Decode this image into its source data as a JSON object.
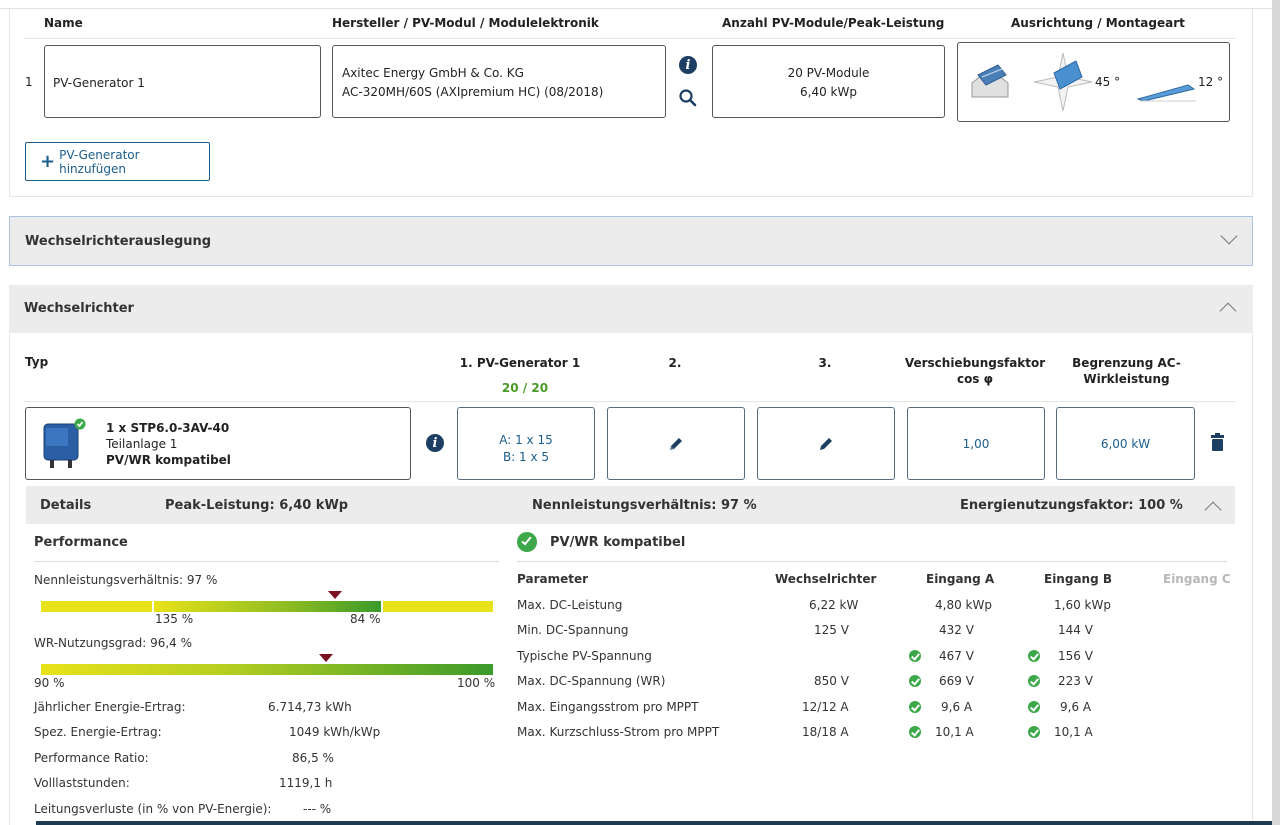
{
  "generator_table": {
    "headers": {
      "name": "Name",
      "manufacturer": "Hersteller / PV-Modul / Modulelektronik",
      "count": "Anzahl PV-Module/Peak-Leistung",
      "orientation": "Ausrichtung / Montageart"
    },
    "rows": [
      {
        "index": "1",
        "name": "PV-Generator 1",
        "manufacturer_line1": "Axitec Energy GmbH & Co. KG",
        "manufacturer_line2": "AC-320MH/60S (AXIpremium HC) (08/2018)",
        "modules": "20 PV-Module",
        "peak": "6,40 kWp",
        "azimuth": "45 °",
        "tilt": "12 °"
      }
    ],
    "add_button": "PV-Generator hinzufügen"
  },
  "sections": {
    "inverter_design": "Wechselrichterauslegung",
    "inverter": "Wechselrichter"
  },
  "inverter_table": {
    "headers": {
      "type": "Typ",
      "gen1": "1. PV-Generator 1",
      "gen1_count": "20 / 20",
      "gen2": "2.",
      "gen3": "3.",
      "cosphi_1": "Verschiebungsfaktor",
      "cosphi_2": "cos φ",
      "limit_1": "Begrenzung AC-",
      "limit_2": "Wirkleistung"
    },
    "row": {
      "name": "1 x STP6.0-3AV-40",
      "sub": "Teilanlage 1",
      "status": "PV/WR kompatibel",
      "gen1_a": "A: 1 x 15",
      "gen1_b": "B: 1 x 5",
      "cosphi": "1,00",
      "limit": "6,00 kW"
    }
  },
  "details": {
    "label": "Details",
    "peak": "Peak-Leistung: 6,40 kWp",
    "ratio": "Nennleistungsverhältnis: 97 %",
    "factor": "Energienutzungsfaktor: 100 %"
  },
  "performance": {
    "title": "Performance",
    "ratio_label": "Nennleistungsverhältnis: 97 %",
    "ratio_marker_pct": 65,
    "ratio_low": "135 %",
    "ratio_high": "84 %",
    "efficiency_label": "WR-Nutzungsgrad: 96,4 %",
    "efficiency_marker_pct": 63,
    "eff_min": "90 %",
    "eff_max": "100 %",
    "stats": [
      {
        "label": "Jährlicher Energie-Ertrag:",
        "value": "6.714,73 kWh"
      },
      {
        "label": "Spez. Energie-Ertrag:",
        "value": "1049 kWh/kWp"
      },
      {
        "label": "Performance Ratio:",
        "value": "86,5 %"
      },
      {
        "label": "Volllaststunden:",
        "value": "1119,1 h"
      },
      {
        "label": "Leitungsverluste (in % von PV-Energie):",
        "value": "--- %"
      }
    ]
  },
  "compat": {
    "title": "PV/WR kompatibel",
    "headers": [
      "Parameter",
      "Wechselrichter",
      "Eingang A",
      "Eingang B",
      "Eingang C"
    ],
    "rows": [
      {
        "param": "Max. DC-Leistung",
        "wr": "6,22 kW",
        "a": "4,80 kWp",
        "b": "1,60 kWp",
        "check": false
      },
      {
        "param": "Min. DC-Spannung",
        "wr": "125 V",
        "a": "432 V",
        "b": "144 V",
        "check": false
      },
      {
        "param": "Typische PV-Spannung",
        "wr": "",
        "a": "467 V",
        "b": "156 V",
        "check": true
      },
      {
        "param": "Max. DC-Spannung (WR)",
        "wr": "850 V",
        "a": "669 V",
        "b": "223 V",
        "check": true
      },
      {
        "param": "Max. Eingangsstrom pro MPPT",
        "wr": "12/12 A",
        "a": "9,6 A",
        "b": "9,6 A",
        "check": true
      },
      {
        "param": "Max. Kurzschluss-Strom pro MPPT",
        "wr": "18/18 A",
        "a": "10,1 A",
        "b": "10,1 A",
        "check": true
      }
    ]
  },
  "colors": {
    "accent": "#1b5e8c",
    "ok": "#3ca84a",
    "marker": "#7a1020"
  }
}
